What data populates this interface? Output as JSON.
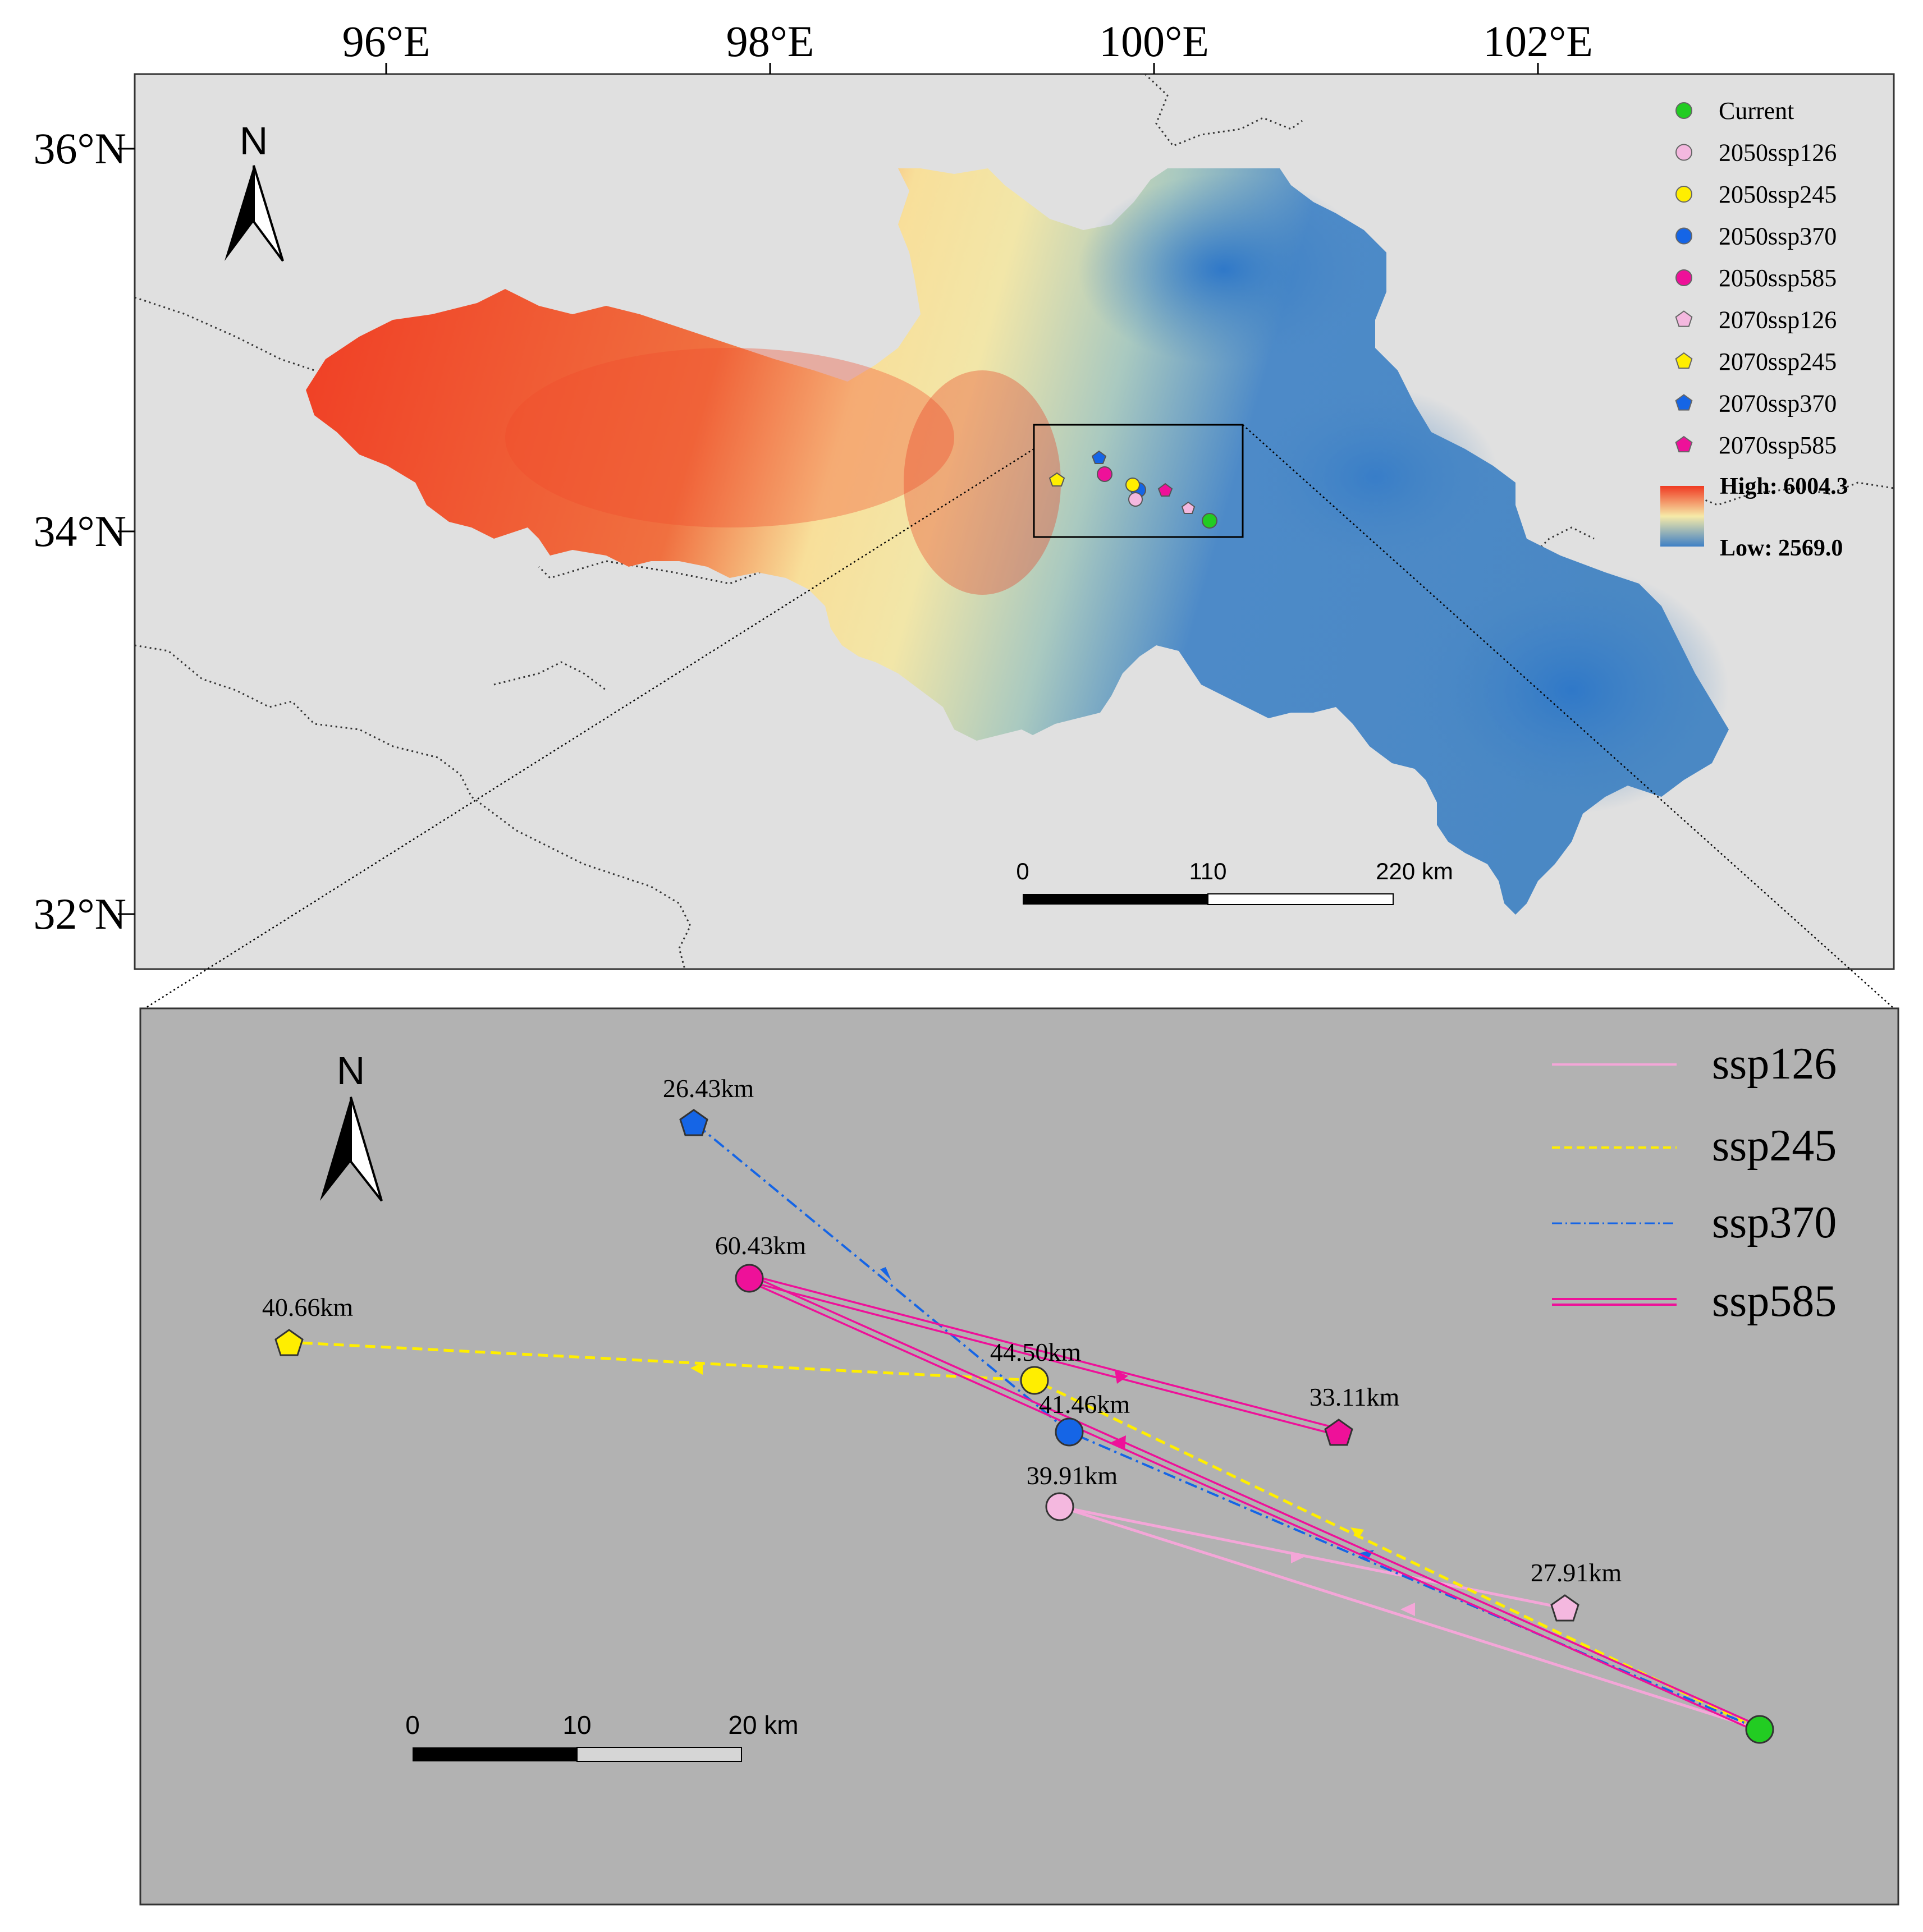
{
  "map_top": {
    "lon_ticks": [
      {
        "deg": 96,
        "label": "96°E"
      },
      {
        "deg": 98,
        "label": "98°E"
      },
      {
        "deg": 100,
        "label": "100°E"
      },
      {
        "deg": 102,
        "label": "102°E"
      }
    ],
    "lat_ticks": [
      {
        "deg": 36,
        "label": "36°N"
      },
      {
        "deg": 34,
        "label": "34°N"
      },
      {
        "deg": 32,
        "label": "32°N"
      }
    ],
    "north_label": "N",
    "legend": [
      {
        "label": "Current",
        "color": "#22cc22",
        "shape": "circle"
      },
      {
        "label": "2050ssp126",
        "color": "#f4b8df",
        "shape": "circle"
      },
      {
        "label": "2050ssp245",
        "color": "#ffee00",
        "shape": "circle"
      },
      {
        "label": "2050ssp370",
        "color": "#1565e6",
        "shape": "circle"
      },
      {
        "label": "2050ssp585",
        "color": "#ee1199",
        "shape": "circle"
      },
      {
        "label": "2070ssp126",
        "color": "#f4b8df",
        "shape": "pentagon"
      },
      {
        "label": "2070ssp245",
        "color": "#ffee00",
        "shape": "pentagon"
      },
      {
        "label": "2070ssp370",
        "color": "#1565e6",
        "shape": "pentagon"
      },
      {
        "label": "2070ssp585",
        "color": "#ee1199",
        "shape": "pentagon"
      }
    ],
    "elevation": {
      "high_label": "High: 6004.3",
      "low_label": "Low: 2569.0",
      "high_color": "#f03a22",
      "mid_color": "#f6eaa8",
      "low_color": "#3f80c5"
    },
    "scale_bar": {
      "labels": [
        "0",
        "110",
        "220 km"
      ]
    }
  },
  "map_bottom": {
    "north_label": "N",
    "legend": [
      {
        "label": "ssp126",
        "color": "#f4a6d8",
        "style": "solid"
      },
      {
        "label": "ssp245",
        "color": "#ffee00",
        "style": "dashed"
      },
      {
        "label": "ssp370",
        "color": "#1565e6",
        "style": "dashdot"
      },
      {
        "label": "ssp585",
        "color": "#ee1199",
        "style": "double"
      }
    ],
    "distances": {
      "d_2070_370": "26.43km",
      "d_2050_585": "60.43km",
      "d_2070_245": "40.66km",
      "d_2050_245": "44.50km",
      "d_2050_370": "41.46km",
      "d_2070_585": "33.11km",
      "d_2050_126": "39.91km",
      "d_2070_126": "27.91km"
    },
    "scale_bar": {
      "labels": [
        "0",
        "10",
        "20 km"
      ]
    }
  }
}
